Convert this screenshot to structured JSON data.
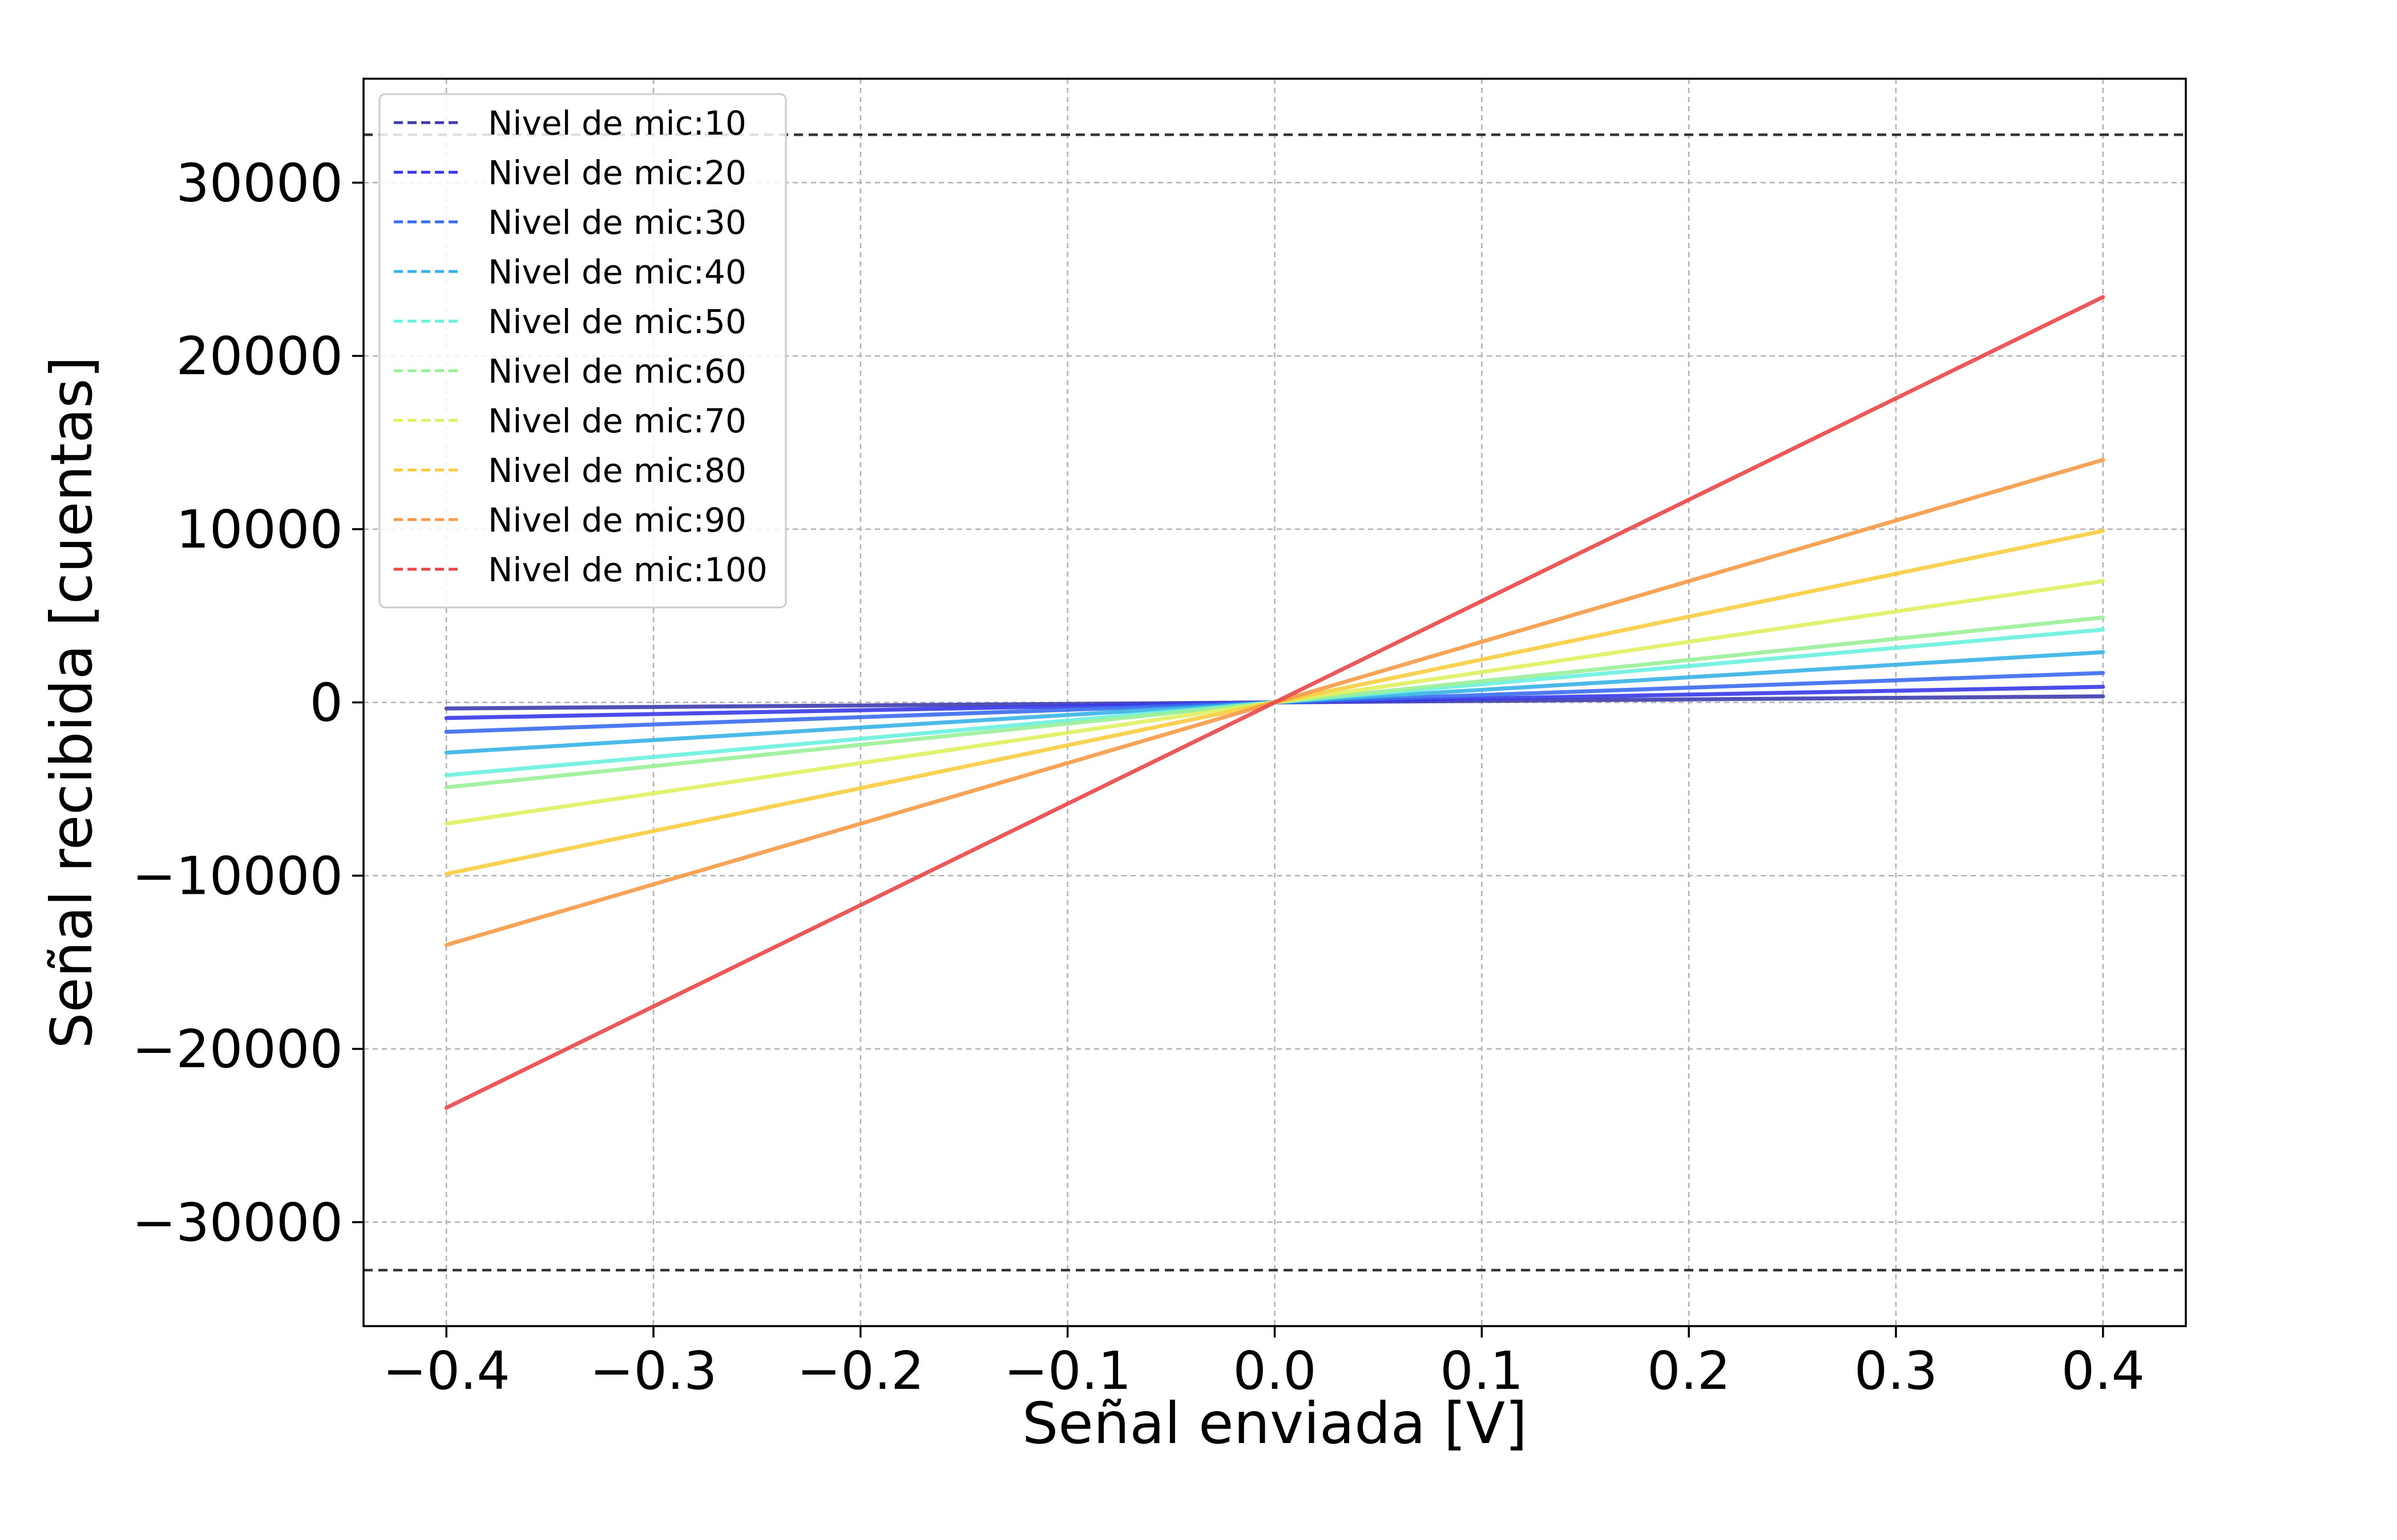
{
  "chart_data": {
    "type": "line",
    "title": "",
    "xlabel": "Señal enviada [V]",
    "ylabel": "Señal recibida [cuentas]",
    "xlim": [
      -0.44,
      0.44
    ],
    "ylim": [
      -36000,
      36000
    ],
    "x_ticks": [
      -0.4,
      -0.3,
      -0.2,
      -0.1,
      0.0,
      0.1,
      0.2,
      0.3,
      0.4
    ],
    "x_tick_labels": [
      "−0.4",
      "−0.3",
      "−0.2",
      "−0.1",
      "0.0",
      "0.1",
      "0.2",
      "0.3",
      "0.4"
    ],
    "y_ticks": [
      -30000,
      -20000,
      -10000,
      0,
      10000,
      20000,
      30000
    ],
    "y_tick_labels": [
      "−30000",
      "−20000",
      "−10000",
      "0",
      "10000",
      "20000",
      "30000"
    ],
    "grid": true,
    "legend_position": "top-left",
    "x": [
      -0.4,
      0.4
    ],
    "series": [
      {
        "name": "Nivel de mic:10",
        "color": "#3d3dae",
        "values": [
          -350,
          350
        ]
      },
      {
        "name": "Nivel de mic:20",
        "color": "#3838e8",
        "values": [
          -900,
          900
        ]
      },
      {
        "name": "Nivel de mic:30",
        "color": "#3a6cf0",
        "values": [
          -1700,
          1700
        ]
      },
      {
        "name": "Nivel de mic:40",
        "color": "#38b2e6",
        "values": [
          -2900,
          2900
        ]
      },
      {
        "name": "Nivel de mic:50",
        "color": "#6af0e0",
        "values": [
          -4200,
          4200
        ]
      },
      {
        "name": "Nivel de mic:60",
        "color": "#9af09a",
        "values": [
          -4900,
          4900
        ]
      },
      {
        "name": "Nivel de mic:70",
        "color": "#e0f060",
        "values": [
          -7000,
          7000
        ]
      },
      {
        "name": "Nivel de mic:80",
        "color": "#f8cc40",
        "values": [
          -9900,
          9900
        ]
      },
      {
        "name": "Nivel de mic:90",
        "color": "#f59a48",
        "values": [
          -14000,
          14000
        ]
      },
      {
        "name": "Nivel de mic:100",
        "color": "#e84848",
        "values": [
          -23400,
          23400
        ]
      }
    ],
    "reference_lines": [
      {
        "y": 32767,
        "color": "#333333",
        "style": "dashed"
      },
      {
        "y": -32768,
        "color": "#333333",
        "style": "dashed"
      }
    ]
  }
}
